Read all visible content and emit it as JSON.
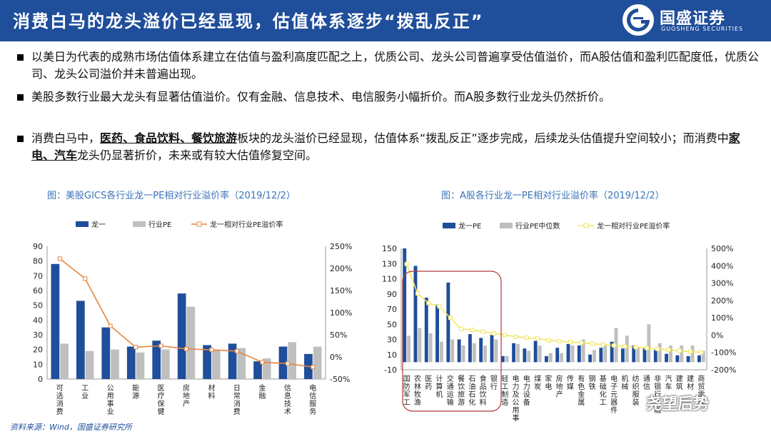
{
  "header": {
    "title": "消费白马的龙头溢价已经显现，估值体系逐步“拨乱反正”",
    "logo_cn": "国盛证券",
    "logo_en": "GUOSHENG SECURITIES"
  },
  "colors": {
    "header_bg": "#1f4e9a",
    "bar_primary": "#1f4e9a",
    "bar_secondary": "#bfbfbf",
    "line_us": "#e8843a",
    "line_cn": "#f2e65c",
    "caption": "#3b73b9"
  },
  "bullets": [
    {
      "parts": [
        {
          "t": "以美日为代表的成熟市场估值体系建立在估值与盈利高度匹配之上，优质公司、龙头公司普遍享受估值溢价，而A股估值和盈利匹配度低，优质公司、龙头公司溢价并未普遍出现。",
          "b": false
        }
      ]
    },
    {
      "parts": [
        {
          "t": "美股多数行业最大龙头有显著估值溢价。仅有金融、信息技术、电信服务小幅折价。而A股多数行业龙头仍然折价。",
          "b": false
        }
      ]
    },
    {
      "parts": [
        {
          "t": "消费白马中，",
          "b": false
        },
        {
          "t": "医药、食品饮料、餐饮旅游",
          "b": true
        },
        {
          "t": "板块的龙头溢价已经显现，估值体系“拨乱反正”逐步完成，后续龙头估值提升空间较小；而消费中",
          "b": false
        },
        {
          "t": "家电、汽车",
          "b": true
        },
        {
          "t": "龙头仍显著折价，未来或有较大估值修复空间。",
          "b": false
        }
      ]
    }
  ],
  "source": "资料来源：Wind，国盛证券研究所",
  "watermark": "尧望后势",
  "chart_data": [
    {
      "type": "bar",
      "title": "图：美股GICS各行业龙一PE相对行业溢价率（2019/12/2）",
      "legend": [
        "龙一",
        "行业PE",
        "龙一相对行业PE溢价率"
      ],
      "categories": [
        "可选消费",
        "工业",
        "公用事业",
        "能源",
        "医疗保健",
        "房地产",
        "材料",
        "日常消费",
        "金融",
        "信息技术",
        "电信服务"
      ],
      "series": [
        {
          "name": "龙一",
          "axis": "left",
          "values": [
            78,
            53,
            35,
            22,
            26,
            58,
            23,
            24,
            12,
            22,
            17
          ]
        },
        {
          "name": "行业PE",
          "axis": "left",
          "values": [
            24,
            19,
            20,
            18,
            20,
            49,
            20,
            21,
            14,
            25,
            22
          ]
        },
        {
          "name": "龙一相对行业PE溢价率",
          "axis": "right",
          "type": "line",
          "values": [
            222,
            177,
            70,
            22,
            25,
            18,
            16,
            13,
            -12,
            -15,
            -23
          ]
        }
      ],
      "ylim": [
        0,
        90
      ],
      "y_ticks": [
        "0",
        "10",
        "20",
        "30",
        "40",
        "50",
        "60",
        "70",
        "80",
        "90"
      ],
      "y2lim": [
        -50,
        250
      ],
      "y2_ticks": [
        "-50%",
        "0%",
        "50%",
        "100%",
        "150%",
        "200%",
        "250%"
      ]
    },
    {
      "type": "bar",
      "title": "图：A股各行业龙一PE相对行业溢价率（2019/12/2）",
      "legend": [
        "龙一PE",
        "行业PE中位数",
        "龙一相对行业PE溢价率"
      ],
      "categories": [
        "国防军工",
        "农林牧渔",
        "医药",
        "计算机",
        "交通运输",
        "餐饮旅游",
        "石油石化",
        "食品饮料",
        "银行",
        "轻工制造",
        "电力及公用事业",
        "电力设备",
        "煤炭",
        "家电",
        "房地产",
        "传媒",
        "有色金属",
        "钢铁",
        "基础化工",
        "电子元器件",
        "机械",
        "纺织服装",
        "通信",
        "非银行金融",
        "汽车",
        "建筑",
        "建材",
        "商贸零售"
      ],
      "series": [
        {
          "name": "龙一PE",
          "axis": "left",
          "values": [
            150,
            127,
            85,
            76,
            105,
            30,
            37,
            32,
            36,
            8,
            25,
            18,
            28,
            8,
            19,
            24,
            22,
            10,
            19,
            27,
            18,
            22,
            18,
            16,
            11,
            9,
            8,
            9
          ]
        },
        {
          "name": "行业PE中位数",
          "axis": "left",
          "values": [
            35,
            45,
            38,
            27,
            30,
            22,
            25,
            22,
            30,
            8,
            24,
            15,
            22,
            12,
            12,
            22,
            30,
            16,
            22,
            45,
            35,
            20,
            50,
            25,
            22,
            22,
            22,
            15
          ]
        },
        {
          "name": "龙一相对行业PE溢价率",
          "axis": "right",
          "type": "line",
          "values": [
            410,
            240,
            185,
            165,
            100,
            35,
            30,
            20,
            10,
            0,
            -10,
            -15,
            -20,
            -30,
            -35,
            -40,
            -45,
            -50,
            -55,
            -60,
            -65,
            -70,
            -75,
            -80,
            -85,
            -90,
            -95,
            -100
          ]
        }
      ],
      "ylim": [
        -10,
        150
      ],
      "y_ticks": [
        "-10",
        "10",
        "30",
        "50",
        "70",
        "90",
        "110",
        "130",
        "150"
      ],
      "y2lim": [
        -200,
        500
      ],
      "y2_ticks": [
        "-200%",
        "-100%",
        "0%",
        "100%",
        "200%",
        "300%",
        "400%",
        "500%"
      ]
    }
  ]
}
